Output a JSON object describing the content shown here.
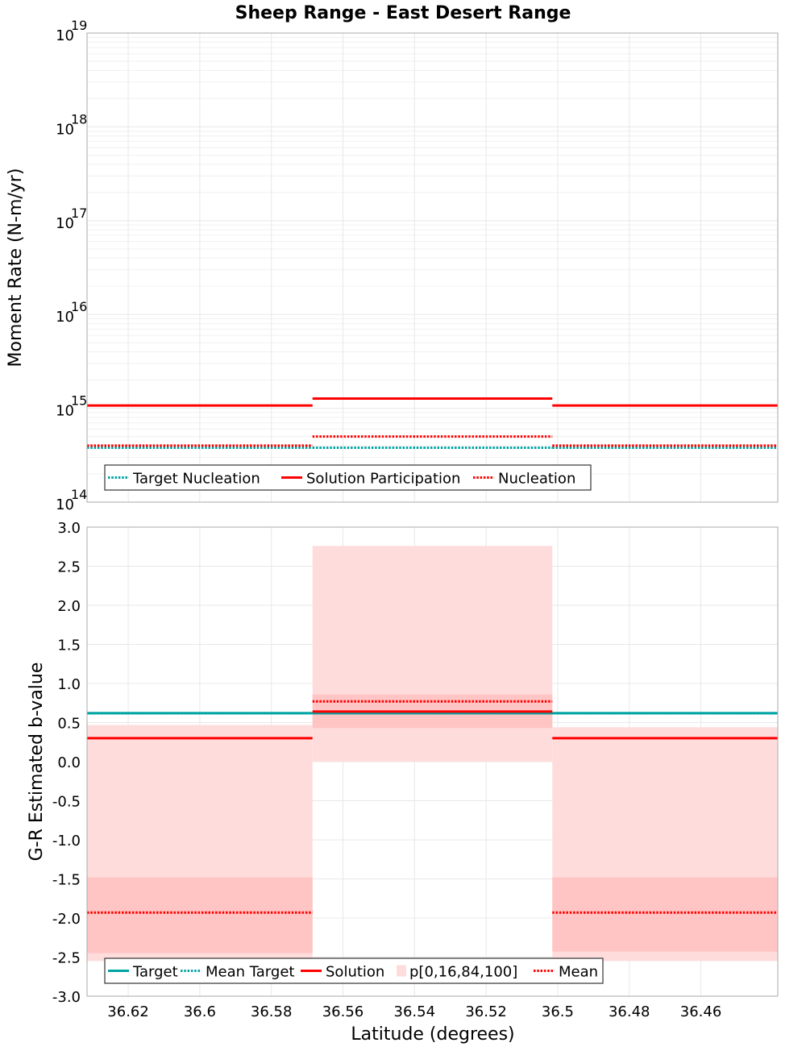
{
  "figure": {
    "title": "Sheep Range - East Desert Range",
    "xlabel": "Latitude (degrees)"
  },
  "colors": {
    "target": "#00a3a3",
    "solution": "#ff0000",
    "band_outer": "#ffdcdc",
    "band_inner": "#ffc4c4",
    "grid": "#e8e8e8",
    "frame": "#aaaaaa"
  },
  "chart_data": [
    {
      "type": "line",
      "panel": "top",
      "yscale": "log",
      "ylabel": "Moment Rate (N-m/yr)",
      "xlim": [
        36.6315,
        36.4385
      ],
      "ylim": [
        100000000000000.0,
        1e+19
      ],
      "x_ticks": [
        "36.62",
        "36.6",
        "36.58",
        "36.56",
        "36.54",
        "36.52",
        "36.5",
        "36.48",
        "36.46"
      ],
      "y_ticks": [
        {
          "base": "10",
          "exp": "14"
        },
        {
          "base": "10",
          "exp": "15"
        },
        {
          "base": "10",
          "exp": "16"
        },
        {
          "base": "10",
          "exp": "17"
        },
        {
          "base": "10",
          "exp": "18"
        },
        {
          "base": "10",
          "exp": "19"
        }
      ],
      "sections": [
        {
          "x0": 36.6315,
          "x1": 36.5685
        },
        {
          "x0": 36.5685,
          "x1": 36.5015
        },
        {
          "x0": 36.5015,
          "x1": 36.4385
        }
      ],
      "series": [
        {
          "name": "Target Nucleation",
          "style": "dotted",
          "color": "#00a3a3",
          "values": [
            380000000000000.0,
            380000000000000.0,
            380000000000000.0
          ]
        },
        {
          "name": "Solution Participation",
          "style": "solid",
          "color": "#ff0000",
          "values": [
            1070000000000000.0,
            1270000000000000.0,
            1070000000000000.0
          ]
        },
        {
          "name": "Nucleation",
          "style": "dotted",
          "color": "#ff0000",
          "values": [
            400000000000000.0,
            500000000000000.0,
            400000000000000.0
          ]
        }
      ],
      "legend": [
        "Target Nucleation",
        "Solution Participation",
        "Nucleation"
      ]
    },
    {
      "type": "line",
      "panel": "bottom",
      "yscale": "linear",
      "ylabel": "G-R Estimated b-value",
      "xlim": [
        36.6315,
        36.4385
      ],
      "ylim": [
        -3.0,
        3.0
      ],
      "x_ticks": [
        "36.62",
        "36.6",
        "36.58",
        "36.56",
        "36.54",
        "36.52",
        "36.5",
        "36.48",
        "36.46"
      ],
      "y_ticks": [
        "3.0",
        "2.5",
        "2.0",
        "1.5",
        "1.0",
        "0.5",
        "0.0",
        "-0.5",
        "-1.0",
        "-1.5",
        "-2.0",
        "-2.5",
        "-3.0"
      ],
      "sections": [
        {
          "x0": 36.6315,
          "x1": 36.5685
        },
        {
          "x0": 36.5685,
          "x1": 36.5015
        },
        {
          "x0": 36.5015,
          "x1": 36.4385
        }
      ],
      "series": [
        {
          "name": "Target",
          "style": "solid",
          "color": "#00a3a3",
          "values": [
            0.62,
            0.62,
            0.62
          ]
        },
        {
          "name": "Mean Target",
          "style": "dotted",
          "color": "#00a3a3",
          "values": [
            0.62,
            0.62,
            0.62
          ]
        },
        {
          "name": "Solution",
          "style": "solid",
          "color": "#ff0000",
          "values": [
            0.3,
            0.64,
            0.3
          ]
        },
        {
          "name": "Mean",
          "style": "dotted",
          "color": "#ff0000",
          "values": [
            -1.93,
            0.77,
            -1.93
          ]
        }
      ],
      "percentiles": {
        "name": "p[0,16,84,100]",
        "p0": [
          -2.55,
          0.0,
          -2.55
        ],
        "p16": [
          -2.45,
          0.43,
          -2.43
        ],
        "p84": [
          -1.48,
          0.86,
          -1.48
        ],
        "p100": [
          0.47,
          2.76,
          0.44
        ]
      },
      "legend": [
        "Target",
        "Mean Target",
        "Solution",
        "p[0,16,84,100]",
        "Mean"
      ]
    }
  ]
}
